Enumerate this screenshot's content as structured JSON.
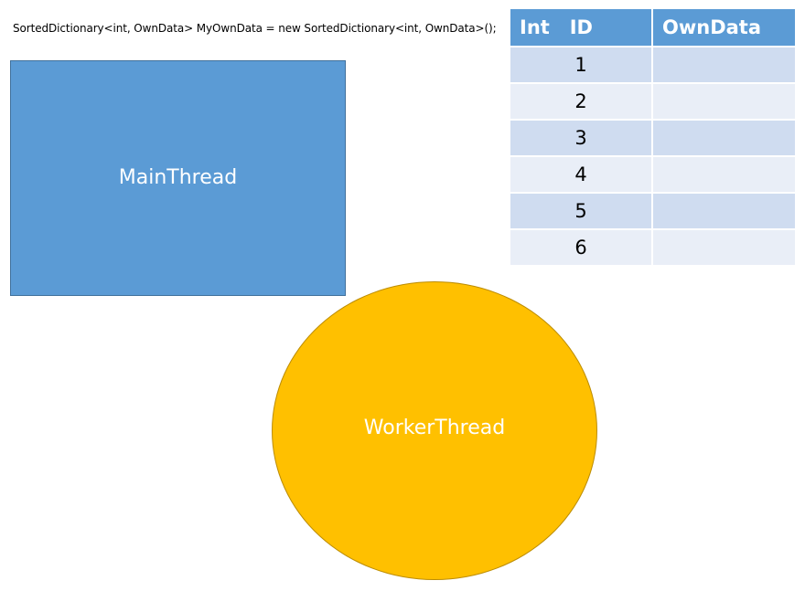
{
  "code": {
    "text": "SortedDictionary<int, OwnData> MyOwnData = new SortedDictionary<int, OwnData>();"
  },
  "main_thread": {
    "label": "MainThread",
    "color": "#5b9bd5"
  },
  "worker_thread": {
    "label": "WorkerThread",
    "color": "#ffc000"
  },
  "table": {
    "headers": [
      "Int   ID",
      "OwnData"
    ],
    "rows": [
      {
        "id": "1",
        "data": ""
      },
      {
        "id": "2",
        "data": ""
      },
      {
        "id": "3",
        "data": ""
      },
      {
        "id": "4",
        "data": ""
      },
      {
        "id": "5",
        "data": ""
      },
      {
        "id": "6",
        "data": ""
      }
    ],
    "header_color": "#5b9bd5",
    "row_color_odd": "#cfdcf0",
    "row_color_even": "#e9eef7"
  }
}
